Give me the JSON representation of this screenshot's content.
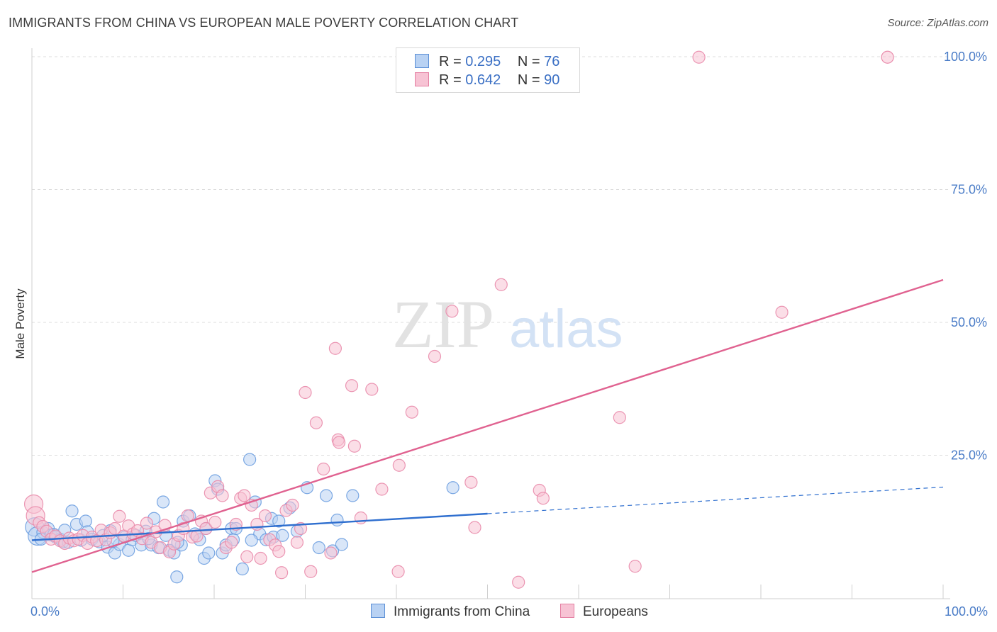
{
  "title": "IMMIGRANTS FROM CHINA VS EUROPEAN MALE POVERTY CORRELATION CHART",
  "source": "Source: ZipAtlas.com",
  "watermark": {
    "zip": "ZIP",
    "atlas": "atlas"
  },
  "legend": {
    "r_label": "R =",
    "n_label": "N =",
    "rows": [
      {
        "r": "0.295",
        "n": "76",
        "fill": "#b9d2f3",
        "stroke": "#5b8fd6"
      },
      {
        "r": "0.642",
        "n": "90",
        "fill": "#f7c3d4",
        "stroke": "#e47fa2"
      }
    ]
  },
  "chart_data": {
    "type": "scatter",
    "title": "IMMIGRANTS FROM CHINA VS EUROPEAN MALE POVERTY CORRELATION CHART",
    "xlabel": "",
    "ylabel": "Male Poverty",
    "xlim": [
      0,
      100
    ],
    "ylim": [
      0,
      100
    ],
    "x_tick_labels": [
      "0.0%",
      "100.0%"
    ],
    "y_tick_labels": [
      "25.0%",
      "50.0%",
      "75.0%",
      "100.0%"
    ],
    "y_ticks": [
      25,
      50,
      75,
      100
    ],
    "grid": "horizontal dashed",
    "legend_position": "top-center",
    "series": [
      {
        "name": "Immigrants from China",
        "color": "#6d9fe0",
        "fill": "#b9d2f3",
        "line_color": "#2f6fcf",
        "trend": {
          "x0": 0,
          "y0": 9.0,
          "x1": 100,
          "y1": 19.0,
          "solid_until": 50
        },
        "points": [
          [
            0.3,
            11.5
          ],
          [
            0.6,
            9.8
          ],
          [
            1.2,
            10.5
          ],
          [
            1.8,
            11.2
          ],
          [
            2.1,
            10.0
          ],
          [
            2.6,
            9.6
          ],
          [
            3.1,
            9.2
          ],
          [
            3.4,
            8.7
          ],
          [
            3.6,
            10.9
          ],
          [
            4.4,
            14.5
          ],
          [
            4.9,
            12.0
          ],
          [
            5.4,
            9.0
          ],
          [
            5.9,
            12.6
          ],
          [
            6.1,
            10.6
          ],
          [
            6.6,
            9.2
          ],
          [
            7.4,
            8.7
          ],
          [
            7.8,
            9.9
          ],
          [
            8.3,
            7.7
          ],
          [
            8.6,
            10.8
          ],
          [
            9.1,
            6.6
          ],
          [
            9.6,
            8.2
          ],
          [
            10.2,
            9.6
          ],
          [
            10.6,
            7.1
          ],
          [
            11.0,
            9.1
          ],
          [
            11.4,
            9.9
          ],
          [
            12.0,
            8.1
          ],
          [
            12.5,
            10.7
          ],
          [
            13.1,
            8.1
          ],
          [
            13.4,
            13.1
          ],
          [
            13.9,
            7.6
          ],
          [
            14.4,
            16.2
          ],
          [
            14.7,
            9.9
          ],
          [
            15.1,
            7.1
          ],
          [
            15.6,
            6.6
          ],
          [
            15.9,
            2.1
          ],
          [
            16.4,
            8.1
          ],
          [
            16.6,
            12.6
          ],
          [
            17.3,
            13.6
          ],
          [
            17.9,
            10.2
          ],
          [
            18.4,
            9.1
          ],
          [
            18.9,
            5.6
          ],
          [
            19.1,
            11.2
          ],
          [
            19.4,
            6.6
          ],
          [
            20.1,
            20.2
          ],
          [
            20.4,
            18.6
          ],
          [
            20.9,
            6.6
          ],
          [
            21.3,
            8.1
          ],
          [
            21.9,
            11.2
          ],
          [
            22.1,
            9.1
          ],
          [
            22.4,
            11.2
          ],
          [
            23.1,
            3.6
          ],
          [
            23.9,
            24.2
          ],
          [
            24.5,
            16.2
          ],
          [
            25.0,
            10.2
          ],
          [
            25.7,
            9.1
          ],
          [
            26.3,
            13.1
          ],
          [
            26.5,
            9.6
          ],
          [
            27.1,
            12.6
          ],
          [
            27.5,
            9.9
          ],
          [
            28.3,
            15.1
          ],
          [
            29.1,
            10.7
          ],
          [
            30.2,
            18.9
          ],
          [
            31.5,
            7.6
          ],
          [
            32.3,
            17.4
          ],
          [
            33.0,
            7.0
          ],
          [
            33.5,
            12.8
          ],
          [
            34.0,
            8.2
          ],
          [
            35.2,
            17.4
          ],
          [
            46.2,
            18.9
          ],
          [
            1.0,
            9.2
          ],
          [
            2.4,
            10.1
          ],
          [
            4.0,
            8.6
          ],
          [
            8.9,
            8.8
          ],
          [
            12.8,
            9.3
          ],
          [
            16.0,
            8.6
          ],
          [
            24.1,
            9.0
          ]
        ]
      },
      {
        "name": "Europeans",
        "color": "#e98bab",
        "fill": "#f7c3d4",
        "line_color": "#e06290",
        "trend": {
          "x0": 0,
          "y0": 3.0,
          "x1": 100,
          "y1": 58.0,
          "solid_until": 100
        },
        "points": [
          [
            0.2,
            15.8
          ],
          [
            0.4,
            13.6
          ],
          [
            0.8,
            12.3
          ],
          [
            1.2,
            11.6
          ],
          [
            1.6,
            10.7
          ],
          [
            2.1,
            9.2
          ],
          [
            2.6,
            9.8
          ],
          [
            3.1,
            8.9
          ],
          [
            3.6,
            8.4
          ],
          [
            4.1,
            9.4
          ],
          [
            4.6,
            8.9
          ],
          [
            5.1,
            9.2
          ],
          [
            5.6,
            9.9
          ],
          [
            6.1,
            8.4
          ],
          [
            6.6,
            9.6
          ],
          [
            7.1,
            8.9
          ],
          [
            7.6,
            10.9
          ],
          [
            8.1,
            9.1
          ],
          [
            8.6,
            10.4
          ],
          [
            9.1,
            11.2
          ],
          [
            9.6,
            13.5
          ],
          [
            10.1,
            9.8
          ],
          [
            10.6,
            11.7
          ],
          [
            11.1,
            10.2
          ],
          [
            11.6,
            10.8
          ],
          [
            12.1,
            9.3
          ],
          [
            12.6,
            12.2
          ],
          [
            13.1,
            8.6
          ],
          [
            13.6,
            10.6
          ],
          [
            14.1,
            7.6
          ],
          [
            14.6,
            11.8
          ],
          [
            15.1,
            6.8
          ],
          [
            15.6,
            8.3
          ],
          [
            16.1,
            9.9
          ],
          [
            16.6,
            11.2
          ],
          [
            17.1,
            13.6
          ],
          [
            17.6,
            9.6
          ],
          [
            18.1,
            9.8
          ],
          [
            18.6,
            12.6
          ],
          [
            19.1,
            11.2
          ],
          [
            19.6,
            17.9
          ],
          [
            20.1,
            12.4
          ],
          [
            20.4,
            19.1
          ],
          [
            20.9,
            17.4
          ],
          [
            21.3,
            7.6
          ],
          [
            21.9,
            8.6
          ],
          [
            22.4,
            12.0
          ],
          [
            22.9,
            16.9
          ],
          [
            23.3,
            17.4
          ],
          [
            23.6,
            5.9
          ],
          [
            24.1,
            15.6
          ],
          [
            24.7,
            12.0
          ],
          [
            25.1,
            5.6
          ],
          [
            25.6,
            13.6
          ],
          [
            26.1,
            9.1
          ],
          [
            26.7,
            8.1
          ],
          [
            27.1,
            6.9
          ],
          [
            27.4,
            2.9
          ],
          [
            27.9,
            14.6
          ],
          [
            28.6,
            15.6
          ],
          [
            29.1,
            8.6
          ],
          [
            29.5,
            11.2
          ],
          [
            30.0,
            36.8
          ],
          [
            30.6,
            3.1
          ],
          [
            31.2,
            31.1
          ],
          [
            32.0,
            22.4
          ],
          [
            32.8,
            6.6
          ],
          [
            33.3,
            45.1
          ],
          [
            33.6,
            27.9
          ],
          [
            33.7,
            27.4
          ],
          [
            35.1,
            38.1
          ],
          [
            35.4,
            26.7
          ],
          [
            36.1,
            13.2
          ],
          [
            37.3,
            37.4
          ],
          [
            38.4,
            18.6
          ],
          [
            40.2,
            3.1
          ],
          [
            40.3,
            23.1
          ],
          [
            41.7,
            33.1
          ],
          [
            44.2,
            43.6
          ],
          [
            46.1,
            52.1
          ],
          [
            48.2,
            19.9
          ],
          [
            48.6,
            11.4
          ],
          [
            51.5,
            57.1
          ],
          [
            53.4,
            1.1
          ],
          [
            55.7,
            18.4
          ],
          [
            56.1,
            16.9
          ],
          [
            64.5,
            32.1
          ],
          [
            66.2,
            4.1
          ],
          [
            73.2,
            99.9
          ],
          [
            82.3,
            51.9
          ]
        ]
      }
    ],
    "extra_points": {
      "Europeans_top_right": [
        93.9,
        99.9
      ]
    }
  },
  "bottom_legend": [
    {
      "label": "Immigrants from China"
    },
    {
      "label": "Europeans"
    }
  ]
}
